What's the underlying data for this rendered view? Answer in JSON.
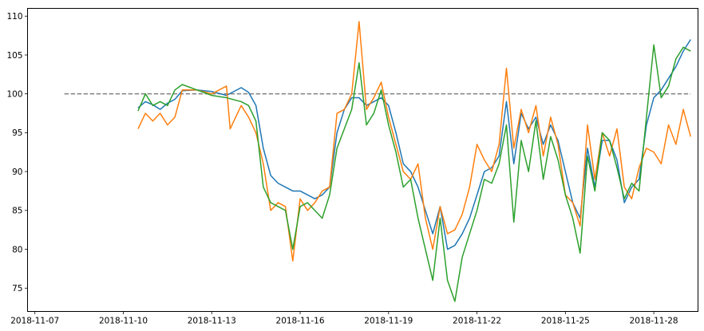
{
  "chart_data": {
    "type": "line",
    "title": "",
    "xlabel": "",
    "ylabel": "",
    "x_axis_type": "date",
    "xlim": [
      "2018-11-06T18:00",
      "2018-11-29T12:00"
    ],
    "ylim": [
      72,
      111
    ],
    "x_ticks": [
      "2018-11-07",
      "2018-11-10",
      "2018-11-13",
      "2018-11-16",
      "2018-11-19",
      "2018-11-22",
      "2018-11-25",
      "2018-11-28"
    ],
    "y_ticks": [
      75,
      80,
      85,
      90,
      95,
      100,
      105,
      110
    ],
    "grid": false,
    "legend": "none",
    "reference_line": {
      "y": 100,
      "x_start": "2018-11-08T00:00",
      "x_end": "2018-11-29T06:00",
      "style": "dashed",
      "color": "#808080"
    },
    "series": [
      {
        "color": "#1f77b4",
        "points": [
          [
            "2018-11-10T12:00",
            98.2
          ],
          [
            "2018-11-10T18:00",
            99.0
          ],
          [
            "2018-11-11T00:00",
            98.6
          ],
          [
            "2018-11-11T06:00",
            98.0
          ],
          [
            "2018-11-11T12:00",
            98.8
          ],
          [
            "2018-11-11T18:00",
            99.3
          ],
          [
            "2018-11-12T00:00",
            100.4
          ],
          [
            "2018-11-12T12:00",
            100.5
          ],
          [
            "2018-11-13T00:00",
            100.3
          ],
          [
            "2018-11-13T12:00",
            99.8
          ],
          [
            "2018-11-14T00:00",
            100.8
          ],
          [
            "2018-11-14T06:00",
            100.2
          ],
          [
            "2018-11-14T12:00",
            98.5
          ],
          [
            "2018-11-14T18:00",
            93.0
          ],
          [
            "2018-11-15T00:00",
            89.5
          ],
          [
            "2018-11-15T06:00",
            88.5
          ],
          [
            "2018-11-15T12:00",
            88.0
          ],
          [
            "2018-11-15T18:00",
            87.5
          ],
          [
            "2018-11-16T00:00",
            87.5
          ],
          [
            "2018-11-16T06:00",
            87.0
          ],
          [
            "2018-11-16T12:00",
            86.5
          ],
          [
            "2018-11-16T18:00",
            87.0
          ],
          [
            "2018-11-17T00:00",
            88.0
          ],
          [
            "2018-11-17T06:00",
            95.0
          ],
          [
            "2018-11-17T12:00",
            98.0
          ],
          [
            "2018-11-17T18:00",
            99.5
          ],
          [
            "2018-11-18T00:00",
            99.5
          ],
          [
            "2018-11-18T06:00",
            98.5
          ],
          [
            "2018-11-18T12:00",
            99.0
          ],
          [
            "2018-11-18T18:00",
            99.5
          ],
          [
            "2018-11-19T00:00",
            98.5
          ],
          [
            "2018-11-19T06:00",
            95.0
          ],
          [
            "2018-11-19T12:00",
            91.0
          ],
          [
            "2018-11-19T18:00",
            90.0
          ],
          [
            "2018-11-20T00:00",
            88.0
          ],
          [
            "2018-11-20T06:00",
            85.0
          ],
          [
            "2018-11-20T12:00",
            82.0
          ],
          [
            "2018-11-20T18:00",
            85.5
          ],
          [
            "2018-11-21T00:00",
            80.0
          ],
          [
            "2018-11-21T06:00",
            80.5
          ],
          [
            "2018-11-21T12:00",
            82.0
          ],
          [
            "2018-11-21T18:00",
            84.0
          ],
          [
            "2018-11-22T00:00",
            87.0
          ],
          [
            "2018-11-22T06:00",
            90.0
          ],
          [
            "2018-11-22T12:00",
            90.5
          ],
          [
            "2018-11-22T18:00",
            92.0
          ],
          [
            "2018-11-23T00:00",
            99.0
          ],
          [
            "2018-11-23T06:00",
            91.0
          ],
          [
            "2018-11-23T12:00",
            97.5
          ],
          [
            "2018-11-23T18:00",
            95.5
          ],
          [
            "2018-11-24T00:00",
            97.0
          ],
          [
            "2018-11-24T06:00",
            93.5
          ],
          [
            "2018-11-24T12:00",
            96.0
          ],
          [
            "2018-11-24T18:00",
            94.0
          ],
          [
            "2018-11-25T00:00",
            90.0
          ],
          [
            "2018-11-25T06:00",
            86.0
          ],
          [
            "2018-11-25T12:00",
            84.0
          ],
          [
            "2018-11-25T18:00",
            93.0
          ],
          [
            "2018-11-26T00:00",
            88.0
          ],
          [
            "2018-11-26T06:00",
            94.0
          ],
          [
            "2018-11-26T12:00",
            94.0
          ],
          [
            "2018-11-26T18:00",
            91.5
          ],
          [
            "2018-11-27T00:00",
            86.0
          ],
          [
            "2018-11-27T06:00",
            88.0
          ],
          [
            "2018-11-27T12:00",
            89.0
          ],
          [
            "2018-11-27T18:00",
            96.0
          ],
          [
            "2018-11-28T00:00",
            99.5
          ],
          [
            "2018-11-28T06:00",
            100.5
          ],
          [
            "2018-11-28T12:00",
            102.0
          ],
          [
            "2018-11-28T18:00",
            103.5
          ],
          [
            "2018-11-29T00:00",
            105.5
          ],
          [
            "2018-11-29T06:00",
            107.0
          ]
        ]
      },
      {
        "color": "#ff7f0e",
        "points": [
          [
            "2018-11-10T12:00",
            95.5
          ],
          [
            "2018-11-10T18:00",
            97.5
          ],
          [
            "2018-11-11T00:00",
            96.5
          ],
          [
            "2018-11-11T06:00",
            97.5
          ],
          [
            "2018-11-11T12:00",
            96.0
          ],
          [
            "2018-11-11T18:00",
            97.0
          ],
          [
            "2018-11-12T00:00",
            100.5
          ],
          [
            "2018-11-12T12:00",
            100.5
          ],
          [
            "2018-11-13T00:00",
            100.0
          ],
          [
            "2018-11-13T12:00",
            101.0
          ],
          [
            "2018-11-13T15:00",
            95.5
          ],
          [
            "2018-11-14T00:00",
            98.5
          ],
          [
            "2018-11-14T06:00",
            97.0
          ],
          [
            "2018-11-14T12:00",
            95.0
          ],
          [
            "2018-11-14T18:00",
            91.0
          ],
          [
            "2018-11-15T00:00",
            85.0
          ],
          [
            "2018-11-15T06:00",
            86.0
          ],
          [
            "2018-11-15T12:00",
            85.5
          ],
          [
            "2018-11-15T18:00",
            78.5
          ],
          [
            "2018-11-16T00:00",
            86.5
          ],
          [
            "2018-11-16T06:00",
            85.0
          ],
          [
            "2018-11-16T12:00",
            86.0
          ],
          [
            "2018-11-16T18:00",
            87.5
          ],
          [
            "2018-11-17T00:00",
            88.0
          ],
          [
            "2018-11-17T06:00",
            97.5
          ],
          [
            "2018-11-17T12:00",
            98.0
          ],
          [
            "2018-11-17T18:00",
            100.0
          ],
          [
            "2018-11-18T00:00",
            109.3
          ],
          [
            "2018-11-18T06:00",
            98.0
          ],
          [
            "2018-11-18T12:00",
            99.5
          ],
          [
            "2018-11-18T18:00",
            101.5
          ],
          [
            "2018-11-19T00:00",
            97.0
          ],
          [
            "2018-11-19T06:00",
            93.5
          ],
          [
            "2018-11-19T12:00",
            90.0
          ],
          [
            "2018-11-19T18:00",
            89.0
          ],
          [
            "2018-11-20T00:00",
            91.0
          ],
          [
            "2018-11-20T06:00",
            84.0
          ],
          [
            "2018-11-20T12:00",
            80.0
          ],
          [
            "2018-11-20T18:00",
            85.5
          ],
          [
            "2018-11-21T00:00",
            82.0
          ],
          [
            "2018-11-21T06:00",
            82.5
          ],
          [
            "2018-11-21T12:00",
            84.5
          ],
          [
            "2018-11-21T18:00",
            88.0
          ],
          [
            "2018-11-22T00:00",
            93.5
          ],
          [
            "2018-11-22T06:00",
            91.5
          ],
          [
            "2018-11-22T12:00",
            90.0
          ],
          [
            "2018-11-22T18:00",
            93.5
          ],
          [
            "2018-11-23T00:00",
            103.3
          ],
          [
            "2018-11-23T06:00",
            93.0
          ],
          [
            "2018-11-23T12:00",
            98.0
          ],
          [
            "2018-11-23T18:00",
            95.0
          ],
          [
            "2018-11-24T00:00",
            98.5
          ],
          [
            "2018-11-24T06:00",
            92.0
          ],
          [
            "2018-11-24T12:00",
            97.0
          ],
          [
            "2018-11-24T18:00",
            93.5
          ],
          [
            "2018-11-25T00:00",
            87.0
          ],
          [
            "2018-11-25T06:00",
            86.0
          ],
          [
            "2018-11-25T12:00",
            83.0
          ],
          [
            "2018-11-25T18:00",
            96.0
          ],
          [
            "2018-11-26T00:00",
            89.0
          ],
          [
            "2018-11-26T06:00",
            95.0
          ],
          [
            "2018-11-26T12:00",
            92.0
          ],
          [
            "2018-11-26T18:00",
            95.5
          ],
          [
            "2018-11-27T00:00",
            88.0
          ],
          [
            "2018-11-27T06:00",
            86.5
          ],
          [
            "2018-11-27T12:00",
            90.5
          ],
          [
            "2018-11-27T18:00",
            93.0
          ],
          [
            "2018-11-28T00:00",
            92.5
          ],
          [
            "2018-11-28T06:00",
            91.0
          ],
          [
            "2018-11-28T12:00",
            96.0
          ],
          [
            "2018-11-28T18:00",
            93.5
          ],
          [
            "2018-11-29T00:00",
            98.0
          ],
          [
            "2018-11-29T06:00",
            94.5
          ]
        ]
      },
      {
        "color": "#2ca02c",
        "points": [
          [
            "2018-11-10T12:00",
            97.8
          ],
          [
            "2018-11-10T18:00",
            100.0
          ],
          [
            "2018-11-11T00:00",
            98.5
          ],
          [
            "2018-11-11T06:00",
            99.0
          ],
          [
            "2018-11-11T12:00",
            98.5
          ],
          [
            "2018-11-11T18:00",
            100.5
          ],
          [
            "2018-11-12T00:00",
            101.2
          ],
          [
            "2018-11-12T12:00",
            100.5
          ],
          [
            "2018-11-13T00:00",
            99.8
          ],
          [
            "2018-11-13T12:00",
            99.5
          ],
          [
            "2018-11-14T00:00",
            99.0
          ],
          [
            "2018-11-14T06:00",
            98.5
          ],
          [
            "2018-11-14T12:00",
            96.5
          ],
          [
            "2018-11-14T18:00",
            88.0
          ],
          [
            "2018-11-15T00:00",
            86.0
          ],
          [
            "2018-11-15T06:00",
            85.5
          ],
          [
            "2018-11-15T12:00",
            85.0
          ],
          [
            "2018-11-15T18:00",
            80.0
          ],
          [
            "2018-11-16T00:00",
            85.5
          ],
          [
            "2018-11-16T06:00",
            86.0
          ],
          [
            "2018-11-16T12:00",
            85.0
          ],
          [
            "2018-11-16T18:00",
            84.0
          ],
          [
            "2018-11-17T00:00",
            87.0
          ],
          [
            "2018-11-17T06:00",
            93.0
          ],
          [
            "2018-11-17T12:00",
            95.5
          ],
          [
            "2018-11-17T18:00",
            98.0
          ],
          [
            "2018-11-18T00:00",
            104.0
          ],
          [
            "2018-11-18T06:00",
            96.0
          ],
          [
            "2018-11-18T12:00",
            97.5
          ],
          [
            "2018-11-18T18:00",
            100.5
          ],
          [
            "2018-11-19T00:00",
            96.0
          ],
          [
            "2018-11-19T06:00",
            92.5
          ],
          [
            "2018-11-19T12:00",
            88.0
          ],
          [
            "2018-11-19T18:00",
            89.0
          ],
          [
            "2018-11-20T00:00",
            84.0
          ],
          [
            "2018-11-20T06:00",
            80.0
          ],
          [
            "2018-11-20T12:00",
            76.0
          ],
          [
            "2018-11-20T18:00",
            84.0
          ],
          [
            "2018-11-21T00:00",
            76.0
          ],
          [
            "2018-11-21T06:00",
            73.3
          ],
          [
            "2018-11-21T12:00",
            79.0
          ],
          [
            "2018-11-21T18:00",
            82.0
          ],
          [
            "2018-11-22T00:00",
            85.0
          ],
          [
            "2018-11-22T06:00",
            89.0
          ],
          [
            "2018-11-22T12:00",
            88.5
          ],
          [
            "2018-11-22T18:00",
            91.0
          ],
          [
            "2018-11-23T00:00",
            96.0
          ],
          [
            "2018-11-23T06:00",
            83.5
          ],
          [
            "2018-11-23T12:00",
            94.0
          ],
          [
            "2018-11-23T18:00",
            90.0
          ],
          [
            "2018-11-24T00:00",
            96.5
          ],
          [
            "2018-11-24T06:00",
            89.0
          ],
          [
            "2018-11-24T12:00",
            94.5
          ],
          [
            "2018-11-24T18:00",
            91.5
          ],
          [
            "2018-11-25T00:00",
            87.0
          ],
          [
            "2018-11-25T06:00",
            84.0
          ],
          [
            "2018-11-25T12:00",
            79.5
          ],
          [
            "2018-11-25T18:00",
            92.0
          ],
          [
            "2018-11-26T00:00",
            87.5
          ],
          [
            "2018-11-26T06:00",
            95.0
          ],
          [
            "2018-11-26T12:00",
            94.0
          ],
          [
            "2018-11-26T18:00",
            90.5
          ],
          [
            "2018-11-27T00:00",
            86.5
          ],
          [
            "2018-11-27T06:00",
            88.5
          ],
          [
            "2018-11-27T12:00",
            87.5
          ],
          [
            "2018-11-27T18:00",
            97.0
          ],
          [
            "2018-11-28T00:00",
            106.3
          ],
          [
            "2018-11-28T06:00",
            99.5
          ],
          [
            "2018-11-28T12:00",
            101.0
          ],
          [
            "2018-11-28T18:00",
            104.5
          ],
          [
            "2018-11-29T00:00",
            106.0
          ],
          [
            "2018-11-29T06:00",
            105.5
          ]
        ]
      }
    ]
  }
}
